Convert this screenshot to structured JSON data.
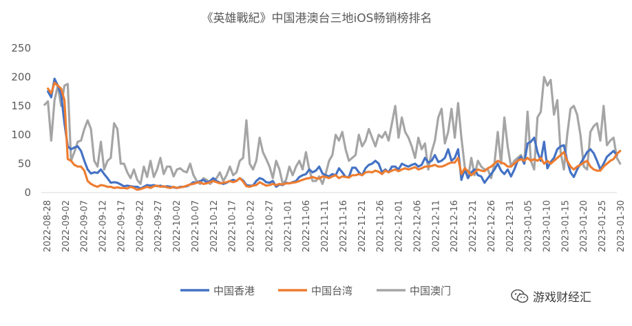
{
  "chart_data": {
    "type": "line",
    "title": "《英雄戰紀》中国港澳台三地iOS畅销榜排名",
    "xlabel": "",
    "ylabel": "",
    "ylim": [
      0,
      250
    ],
    "yticks": [
      0,
      50,
      100,
      150,
      200,
      250
    ],
    "x_tick_labels": [
      "2022-08-28",
      "2022-09-02",
      "2022-09-07",
      "2022-09-12",
      "2022-09-17",
      "2022-09-22",
      "2022-09-27",
      "2022-10-02",
      "2022-10-07",
      "2022-10-12",
      "2022-10-17",
      "2022-10-22",
      "2022-10-27",
      "2022-11-01",
      "2022-11-06",
      "2022-11-11",
      "2022-11-16",
      "2022-11-21",
      "2022-11-26",
      "2022-12-01",
      "2022-12-06",
      "2022-12-11",
      "2022-12-16",
      "2022-12-21",
      "2022-12-26",
      "2022-12-31",
      "2023-01-05",
      "2023-01-10",
      "2023-01-15",
      "2023-01-20",
      "2023-01-25",
      "2023-01-30"
    ],
    "grid": false,
    "legend_position": "bottom",
    "series": [
      {
        "name": "中国香港",
        "color": "#4472C4",
        "values": [
          null,
          null,
          175,
          165,
          197,
          185,
          170,
          120,
          80,
          75,
          78,
          80,
          72,
          55,
          40,
          33,
          35,
          34,
          40,
          32,
          25,
          17,
          18,
          17,
          14,
          11,
          12,
          11,
          10,
          10,
          7,
          10,
          13,
          12,
          13,
          11,
          12,
          10,
          11,
          10,
          9,
          8,
          10,
          10,
          11,
          14,
          18,
          17,
          20,
          22,
          18,
          20,
          25,
          20,
          17,
          15,
          17,
          20,
          22,
          20,
          25,
          21,
          13,
          12,
          12,
          20,
          25,
          23,
          18,
          17,
          20,
          10,
          14,
          13,
          17,
          16,
          18,
          20,
          27,
          30,
          32,
          40,
          35,
          38,
          45,
          33,
          30,
          28,
          32,
          30,
          42,
          35,
          27,
          27,
          43,
          43,
          35,
          30,
          42,
          48,
          50,
          55,
          50,
          35,
          40,
          35,
          45,
          45,
          40,
          50,
          47,
          45,
          48,
          50,
          45,
          48,
          60,
          52,
          55,
          65,
          53,
          55,
          60,
          75,
          55,
          60,
          75,
          22,
          40,
          25,
          35,
          40,
          30,
          28,
          17,
          25,
          32,
          40,
          50,
          38,
          32,
          40,
          28,
          40,
          55,
          62,
          50,
          85,
          88,
          95,
          70,
          55,
          88,
          42,
          53,
          60,
          75,
          80,
          82,
          55,
          35,
          27,
          40,
          50,
          60,
          70,
          75,
          68,
          55,
          40,
          50,
          62,
          67,
          72,
          65
        ]
      },
      {
        "name": "中国台湾",
        "color": "#ED7D31",
        "values": [
          null,
          null,
          180,
          172,
          190,
          185,
          180,
          160,
          58,
          55,
          48,
          45,
          45,
          38,
          20,
          15,
          12,
          10,
          13,
          12,
          10,
          10,
          8,
          9,
          8,
          8,
          7,
          10,
          8,
          5,
          6,
          8,
          10,
          8,
          11,
          12,
          10,
          11,
          9,
          8,
          10,
          8,
          9,
          10,
          12,
          14,
          15,
          17,
          18,
          15,
          16,
          18,
          20,
          18,
          16,
          17,
          18,
          20,
          18,
          20,
          25,
          19,
          11,
          10,
          12,
          13,
          18,
          15,
          12,
          13,
          15,
          13,
          15,
          14,
          16,
          16,
          17,
          18,
          20,
          22,
          24,
          25,
          27,
          25,
          24,
          28,
          27,
          25,
          28,
          30,
          25,
          28,
          27,
          26,
          30,
          30,
          32,
          30,
          35,
          36,
          35,
          38,
          36,
          32,
          38,
          35,
          38,
          40,
          37,
          40,
          42,
          40,
          42,
          44,
          40,
          42,
          45,
          45,
          46,
          48,
          45,
          45,
          47,
          50,
          52,
          52,
          60,
          32,
          42,
          37,
          30,
          35,
          40,
          38,
          37,
          42,
          45,
          50,
          55,
          52,
          50,
          45,
          45,
          50,
          55,
          58,
          55,
          60,
          55,
          58,
          55,
          60,
          50,
          55,
          50,
          55,
          60,
          65,
          70,
          55,
          45,
          40,
          45,
          48,
          52,
          55,
          45,
          40,
          38,
          38,
          45,
          50,
          55,
          58,
          67,
          72
        ]
      },
      {
        "name": "中国澳门",
        "color": "#A5A5A5",
        "values": [
          null,
          152,
          158,
          90,
          160,
          185,
          150,
          185,
          188,
          55,
          70,
          88,
          90,
          110,
          125,
          110,
          55,
          45,
          88,
          40,
          55,
          60,
          120,
          110,
          50,
          50,
          35,
          25,
          40,
          22,
          15,
          45,
          27,
          55,
          27,
          40,
          60,
          32,
          45,
          45,
          28,
          40,
          42,
          37,
          35,
          50,
          30,
          20,
          15,
          25,
          22,
          15,
          20,
          25,
          35,
          20,
          30,
          45,
          30,
          35,
          55,
          60,
          125,
          50,
          40,
          55,
          95,
          70,
          58,
          45,
          25,
          55,
          40,
          15,
          22,
          45,
          30,
          45,
          55,
          40,
          70,
          40,
          20,
          20,
          28,
          15,
          33,
          55,
          65,
          100,
          90,
          105,
          75,
          55,
          60,
          65,
          100,
          80,
          90,
          110,
          95,
          80,
          100,
          95,
          105,
          90,
          120,
          150,
          95,
          130,
          105,
          95,
          80,
          60,
          95,
          75,
          85,
          40,
          70,
          90,
          130,
          145,
          85,
          105,
          145,
          95,
          155,
          95,
          45,
          25,
          60,
          30,
          55,
          45,
          40,
          40,
          25,
          50,
          105,
          50,
          130,
          80,
          45,
          55,
          60,
          65,
          50,
          140,
          55,
          40,
          130,
          140,
          200,
          185,
          195,
          135,
          160,
          70,
          40,
          100,
          145,
          150,
          135,
          100,
          45,
          40,
          105,
          115,
          120,
          90,
          150,
          82,
          90,
          95,
          60,
          50
        ]
      }
    ]
  },
  "watermark": {
    "text": "游戏财经汇",
    "icon": "wechat-icon"
  }
}
